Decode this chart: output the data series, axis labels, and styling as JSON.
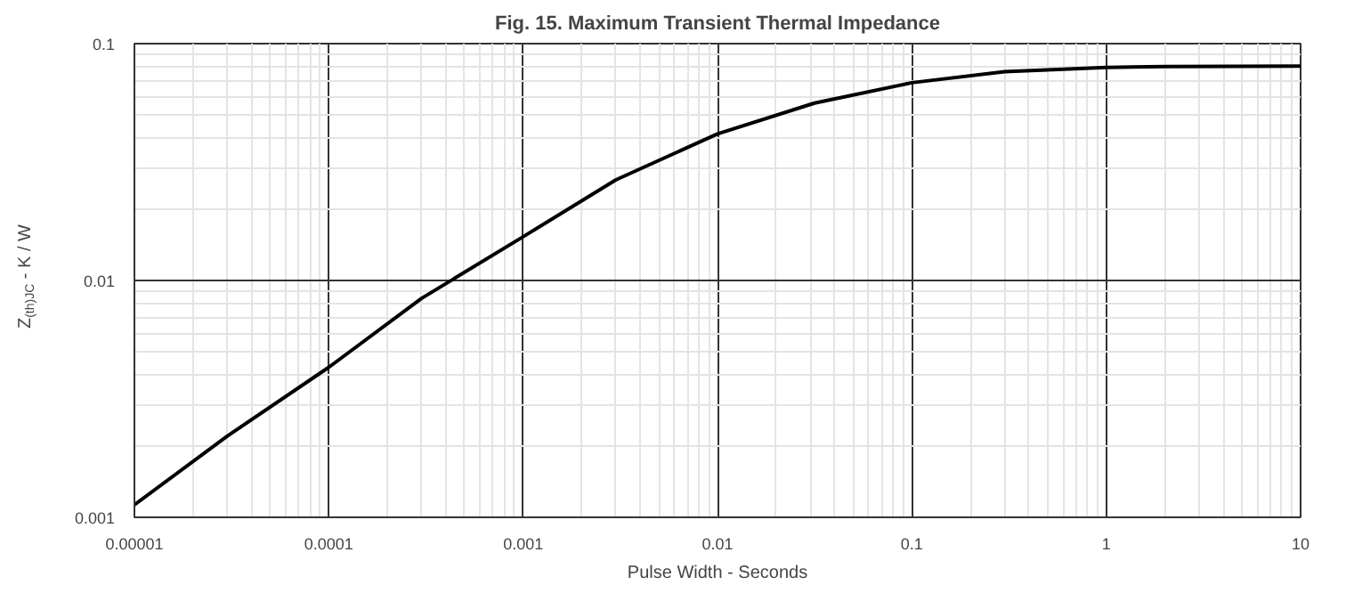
{
  "chart_data": {
    "type": "line",
    "title": "Fig. 15. Maximum Transient Thermal Impedance",
    "xlabel": "Pulse Width - Seconds",
    "ylabel": "Z$_{(th)JC}$ - K / W",
    "x": [
      1e-05,
      3e-05,
      0.0001,
      0.0003,
      0.001,
      0.003,
      0.01,
      0.0316,
      0.1,
      0.3,
      1,
      2,
      10
    ],
    "series": [
      {
        "color": "#000000",
        "values": [
          0.00113,
          0.0022,
          0.0043,
          0.0084,
          0.0153,
          0.0266,
          0.0416,
          0.0561,
          0.0684,
          0.0762,
          0.0794,
          0.08,
          0.0804
        ]
      }
    ],
    "xlim": [
      1e-05,
      10
    ],
    "ylim": [
      0.001,
      0.1
    ],
    "xticks": [
      {
        "value": 1e-05,
        "label": "0.00001"
      },
      {
        "value": 0.0001,
        "label": "0.0001"
      },
      {
        "value": 0.001,
        "label": "0.001"
      },
      {
        "value": 0.01,
        "label": "0.01"
      },
      {
        "value": 0.1,
        "label": "0.1"
      },
      1,
      10
    ],
    "yticks": [
      {
        "value": 0.001,
        "label": "0.001"
      },
      {
        "value": 0.01,
        "label": "0.01"
      },
      {
        "value": 0.1,
        "label": "0.1"
      }
    ],
    "log": "xy",
    "grid": true,
    "marker": "none",
    "line_style": "solid"
  }
}
